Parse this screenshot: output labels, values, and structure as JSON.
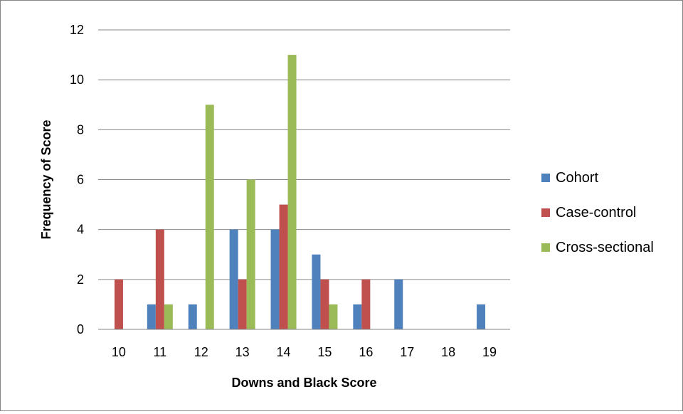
{
  "chart_data": {
    "type": "bar",
    "title": "",
    "xlabel": "Downs and Black Score",
    "ylabel": "Frequency of Score",
    "categories": [
      "10",
      "11",
      "12",
      "13",
      "14",
      "15",
      "16",
      "17",
      "18",
      "19"
    ],
    "series": [
      {
        "name": "Cohort",
        "color": "#4F81BD",
        "values": [
          0,
          1,
          1,
          4,
          4,
          3,
          1,
          2,
          0,
          1
        ]
      },
      {
        "name": "Case-control",
        "color": "#C0504D",
        "values": [
          2,
          4,
          0,
          2,
          5,
          2,
          2,
          0,
          0,
          0
        ]
      },
      {
        "name": "Cross-sectional",
        "color": "#9BBB59",
        "values": [
          0,
          1,
          9,
          6,
          11,
          1,
          0,
          0,
          0,
          0
        ]
      }
    ],
    "ylim": [
      0,
      12
    ],
    "yticks": [
      0,
      2,
      4,
      6,
      8,
      10,
      12
    ],
    "grid": true,
    "legend_position": "right"
  }
}
